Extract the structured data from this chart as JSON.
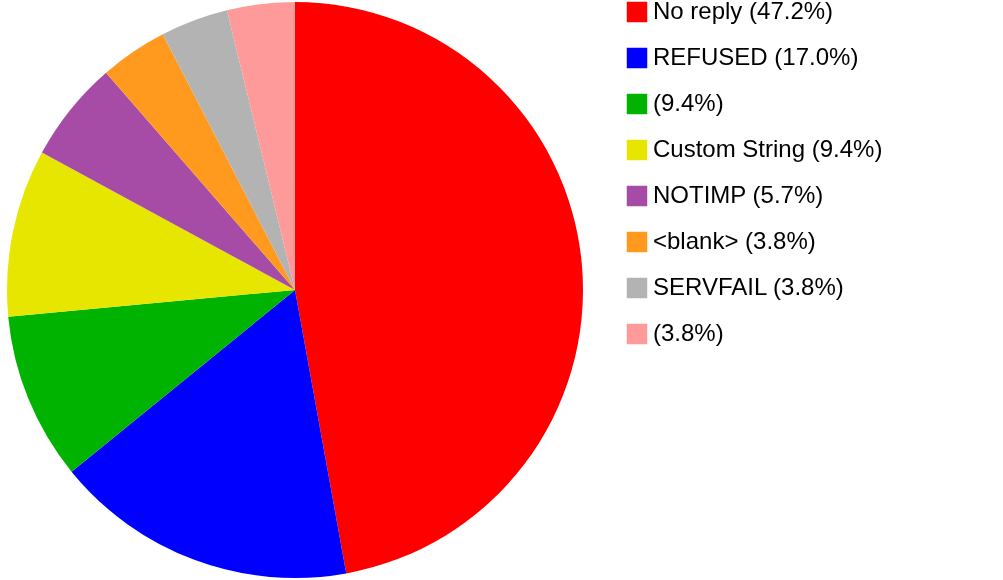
{
  "chart_data": {
    "type": "pie",
    "categories": [
      "No reply (47.2%)",
      "REFUSED (17.0%)",
      "(9.4%)",
      "Custom String (9.4%)",
      "NOTIMP (5.7%)",
      "<blank> (3.8%)",
      "SERVFAIL (3.8%)",
      "(3.8%)"
    ],
    "values": [
      47.2,
      17.0,
      9.4,
      9.4,
      5.7,
      3.8,
      3.8,
      3.8
    ],
    "colors": [
      "#ff0000",
      "#0000ff",
      "#00b300",
      "#e6e600",
      "#a64ca6",
      "#ff9a1f",
      "#b3b3b3",
      "#ff9a9a"
    ],
    "legend": "right"
  }
}
